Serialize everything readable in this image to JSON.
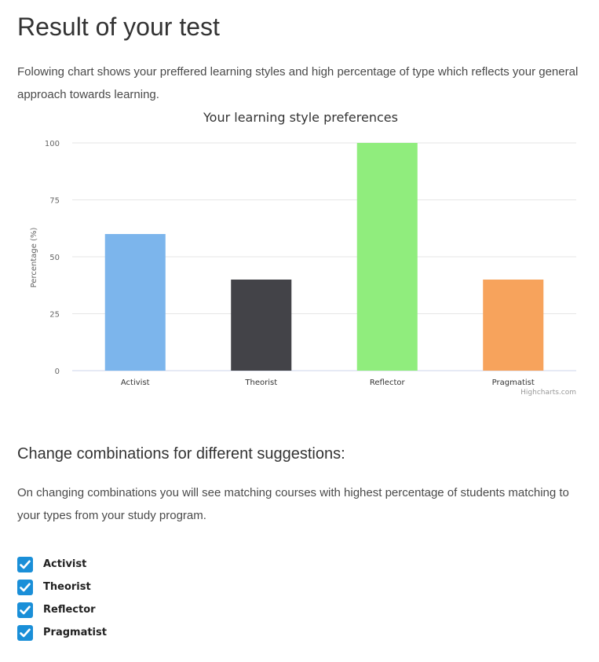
{
  "page": {
    "title": "Result of your test",
    "intro": "Folowing chart shows your preffered learning styles and high percentage of type which reflects your general approach towards learning."
  },
  "chart_data": {
    "type": "bar",
    "title": "Your learning style preferences",
    "xlabel": "",
    "ylabel": "Percentage (%)",
    "categories": [
      "Activist",
      "Theorist",
      "Reflector",
      "Pragmatist"
    ],
    "values": [
      60,
      40,
      100,
      40
    ],
    "colors": [
      "#7cb5ec",
      "#434348",
      "#90ed7d",
      "#f7a35c"
    ],
    "ylim": [
      0,
      100
    ],
    "yticks": [
      0,
      25,
      50,
      75,
      100
    ],
    "grid": true,
    "legend": "none",
    "credit": "Highcharts.com"
  },
  "suggestions": {
    "title": "Change combinations for different suggestions:",
    "description": "On changing combinations you will see matching courses with highest percentage of students matching to your types from your study program.",
    "checkbox_color": "#1a8fd8",
    "options": [
      {
        "label": "Activist",
        "checked": true
      },
      {
        "label": "Theorist",
        "checked": true
      },
      {
        "label": "Reflector",
        "checked": true
      },
      {
        "label": "Pragmatist",
        "checked": true
      }
    ]
  }
}
